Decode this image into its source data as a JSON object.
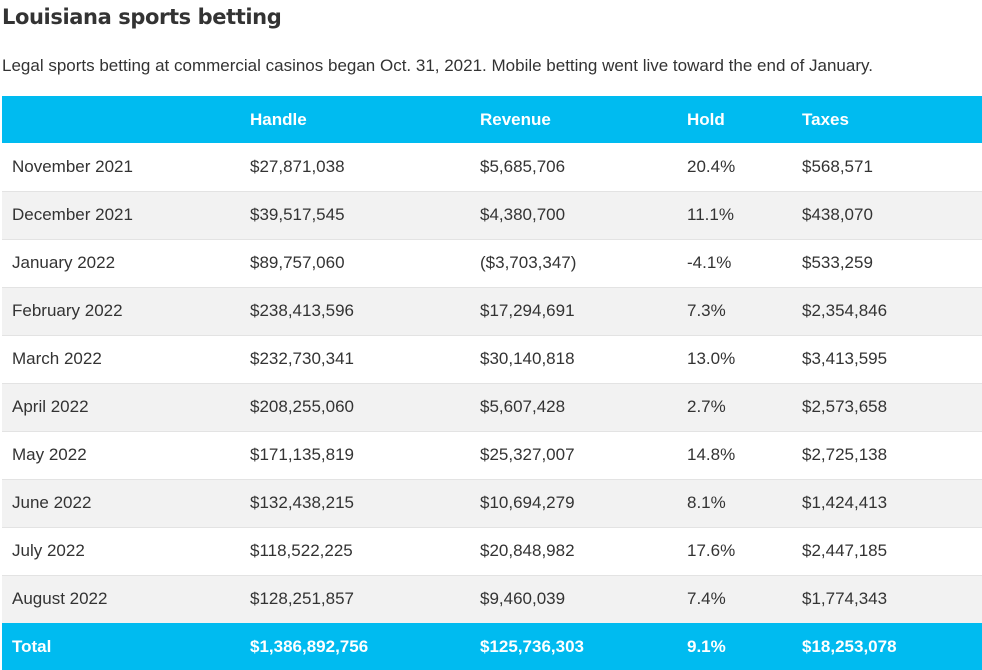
{
  "title": "Louisiana sports betting",
  "subtitle": "Legal sports betting at commercial casinos began Oct. 31, 2021. Mobile betting went live toward the end of January.",
  "table": {
    "headers": [
      "",
      "Handle",
      "Revenue",
      "Hold",
      "Taxes"
    ],
    "rows": [
      [
        "November 2021",
        "$27,871,038",
        "$5,685,706",
        "20.4%",
        "$568,571"
      ],
      [
        "December 2021",
        "$39,517,545",
        "$4,380,700",
        "11.1%",
        "$438,070"
      ],
      [
        "January 2022",
        "$89,757,060",
        "($3,703,347)",
        "-4.1%",
        "$533,259"
      ],
      [
        "February 2022",
        "$238,413,596",
        "$17,294,691",
        "7.3%",
        "$2,354,846"
      ],
      [
        "March 2022",
        "$232,730,341",
        "$30,140,818",
        "13.0%",
        "$3,413,595"
      ],
      [
        "April 2022",
        "$208,255,060",
        "$5,607,428",
        "2.7%",
        "$2,573,658"
      ],
      [
        "May 2022",
        "$171,135,819",
        "$25,327,007",
        "14.8%",
        "$2,725,138"
      ],
      [
        "June 2022",
        "$132,438,215",
        "$10,694,279",
        "8.1%",
        "$1,424,413"
      ],
      [
        "July 2022",
        "$118,522,225",
        "$20,848,982",
        "17.6%",
        "$2,447,185"
      ],
      [
        "August 2022",
        "$128,251,857",
        "$9,460,039",
        "7.4%",
        "$1,774,343"
      ]
    ],
    "total": [
      "Total",
      "$1,386,892,756",
      "$125,736,303",
      "9.1%",
      "$18,253,078"
    ]
  },
  "colors": {
    "header_bg": "#00bbf0",
    "header_text": "#ffffff",
    "stripe_bg": "#f2f2f2",
    "text": "#333333"
  }
}
